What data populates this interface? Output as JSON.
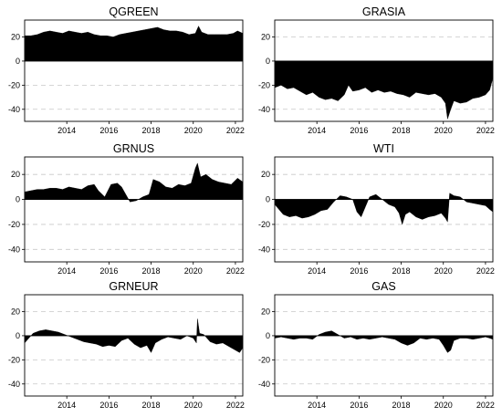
{
  "chart_data": [
    {
      "type": "area",
      "title": "QGREEN",
      "xlim": [
        2012.0,
        2022.35
      ],
      "ylim": [
        -50,
        34
      ],
      "xticks": [
        2014,
        2016,
        2018,
        2020,
        2022
      ],
      "yticks": [
        20,
        0,
        -20,
        -40
      ],
      "grid": "horizontal dashed",
      "series": [
        {
          "x": [
            2012.0,
            2012.3,
            2012.6,
            2012.9,
            2013.2,
            2013.5,
            2013.8,
            2014.1,
            2014.4,
            2014.7,
            2015.0,
            2015.3,
            2015.6,
            2015.9,
            2016.2,
            2016.5,
            2016.8,
            2017.1,
            2017.4,
            2017.7,
            2018.0,
            2018.3,
            2018.6,
            2018.9,
            2019.2,
            2019.5,
            2019.8,
            2020.1,
            2020.25,
            2020.4,
            2020.7,
            2021.0,
            2021.3,
            2021.6,
            2021.9,
            2022.1,
            2022.35
          ],
          "y": [
            21,
            21,
            22,
            24,
            25,
            24,
            23,
            25,
            24,
            23,
            24,
            22,
            21,
            21,
            20,
            22,
            23,
            24,
            25,
            26,
            27,
            28,
            26,
            25,
            25,
            24,
            22,
            23,
            29,
            24,
            22,
            22,
            22,
            22,
            23,
            25,
            23
          ]
        }
      ]
    },
    {
      "type": "area",
      "title": "GRASIA",
      "xlim": [
        2012.0,
        2022.35
      ],
      "ylim": [
        -50,
        34
      ],
      "xticks": [
        2014,
        2016,
        2018,
        2020,
        2022
      ],
      "yticks": [
        20,
        0,
        -20,
        -40
      ],
      "grid": "horizontal dashed",
      "series": [
        {
          "x": [
            2012.0,
            2012.3,
            2012.6,
            2012.9,
            2013.2,
            2013.5,
            2013.8,
            2014.1,
            2014.4,
            2014.7,
            2015.0,
            2015.3,
            2015.5,
            2015.7,
            2016.0,
            2016.3,
            2016.6,
            2016.9,
            2017.2,
            2017.5,
            2017.8,
            2018.1,
            2018.4,
            2018.7,
            2019.0,
            2019.3,
            2019.6,
            2019.9,
            2020.1,
            2020.2,
            2020.35,
            2020.5,
            2020.8,
            2021.1,
            2021.4,
            2021.7,
            2022.0,
            2022.2,
            2022.35
          ],
          "y": [
            -22,
            -20,
            -23,
            -22,
            -25,
            -28,
            -26,
            -30,
            -32,
            -31,
            -33,
            -28,
            -20,
            -25,
            -24,
            -22,
            -26,
            -24,
            -26,
            -25,
            -27,
            -28,
            -30,
            -26,
            -27,
            -28,
            -27,
            -30,
            -35,
            -48,
            -40,
            -33,
            -35,
            -34,
            -31,
            -30,
            -28,
            -24,
            -14
          ]
        }
      ]
    },
    {
      "type": "area",
      "title": "GRNUS",
      "xlim": [
        2012.0,
        2022.35
      ],
      "ylim": [
        -50,
        34
      ],
      "xticks": [
        2014,
        2016,
        2018,
        2020,
        2022
      ],
      "yticks": [
        20,
        0,
        -20,
        -40
      ],
      "grid": "horizontal dashed",
      "series": [
        {
          "x": [
            2012.0,
            2012.3,
            2012.6,
            2012.9,
            2013.2,
            2013.5,
            2013.8,
            2014.1,
            2014.4,
            2014.7,
            2015.0,
            2015.3,
            2015.5,
            2015.8,
            2016.1,
            2016.4,
            2016.6,
            2016.8,
            2017.0,
            2017.3,
            2017.6,
            2017.9,
            2018.1,
            2018.4,
            2018.7,
            2019.0,
            2019.3,
            2019.6,
            2019.9,
            2020.1,
            2020.2,
            2020.35,
            2020.6,
            2020.9,
            2021.2,
            2021.5,
            2021.8,
            2022.1,
            2022.35
          ],
          "y": [
            6,
            7,
            8,
            8,
            9,
            9,
            8,
            10,
            9,
            8,
            11,
            12,
            7,
            2,
            12,
            13,
            10,
            4,
            -2,
            -1,
            2,
            4,
            16,
            14,
            10,
            9,
            12,
            11,
            13,
            25,
            29,
            18,
            20,
            16,
            14,
            13,
            12,
            17,
            14
          ]
        }
      ]
    },
    {
      "type": "area",
      "title": "WTI",
      "xlim": [
        2012.0,
        2022.35
      ],
      "ylim": [
        -50,
        34
      ],
      "xticks": [
        2014,
        2016,
        2018,
        2020,
        2022
      ],
      "yticks": [
        20,
        0,
        -20,
        -40
      ],
      "grid": "horizontal dashed",
      "series": [
        {
          "x": [
            2012.0,
            2012.2,
            2012.4,
            2012.7,
            2013.0,
            2013.3,
            2013.6,
            2013.9,
            2014.2,
            2014.5,
            2014.8,
            2015.1,
            2015.4,
            2015.7,
            2015.9,
            2016.1,
            2016.3,
            2016.5,
            2016.8,
            2017.1,
            2017.4,
            2017.7,
            2017.9,
            2018.05,
            2018.2,
            2018.4,
            2018.7,
            2019.0,
            2019.3,
            2019.6,
            2019.9,
            2020.1,
            2020.2,
            2020.3,
            2020.5,
            2020.8,
            2021.1,
            2021.4,
            2021.7,
            2022.0,
            2022.2,
            2022.35
          ],
          "y": [
            -4,
            -8,
            -12,
            -14,
            -13,
            -15,
            -14,
            -12,
            -9,
            -8,
            -2,
            3,
            2,
            0,
            -10,
            -14,
            -6,
            2,
            4,
            0,
            -4,
            -6,
            -11,
            -20,
            -12,
            -10,
            -14,
            -16,
            -14,
            -13,
            -11,
            -15,
            -18,
            5,
            3,
            2,
            -2,
            -3,
            -4,
            -5,
            -8,
            -10
          ]
        }
      ]
    },
    {
      "type": "area",
      "title": "GRNEUR",
      "xlim": [
        2012.0,
        2022.35
      ],
      "ylim": [
        -50,
        34
      ],
      "xticks": [
        2014,
        2016,
        2018,
        2020,
        2022
      ],
      "yticks": [
        20,
        0,
        -20,
        -40
      ],
      "grid": "horizontal dashed",
      "series": [
        {
          "x": [
            2012.0,
            2012.2,
            2012.4,
            2012.7,
            2013.0,
            2013.3,
            2013.6,
            2013.9,
            2014.2,
            2014.5,
            2014.8,
            2015.1,
            2015.4,
            2015.7,
            2016.0,
            2016.3,
            2016.6,
            2016.9,
            2017.2,
            2017.5,
            2017.8,
            2018.0,
            2018.2,
            2018.5,
            2018.8,
            2019.1,
            2019.4,
            2019.7,
            2020.0,
            2020.15,
            2020.2,
            2020.3,
            2020.5,
            2020.8,
            2021.1,
            2021.4,
            2021.7,
            2022.0,
            2022.2,
            2022.35
          ],
          "y": [
            -6,
            -2,
            2,
            4,
            5,
            4,
            3,
            1,
            -1,
            -3,
            -5,
            -6,
            -7,
            -9,
            -8,
            -9,
            -4,
            -2,
            -7,
            -10,
            -8,
            -14,
            -6,
            -3,
            -1,
            -2,
            -3,
            0,
            -2,
            -6,
            14,
            2,
            1,
            -5,
            -7,
            -6,
            -9,
            -12,
            -14,
            -10
          ]
        }
      ]
    },
    {
      "type": "area",
      "title": "GAS",
      "xlim": [
        2012.0,
        2022.35
      ],
      "ylim": [
        -50,
        34
      ],
      "xticks": [
        2014,
        2016,
        2018,
        2020,
        2022
      ],
      "yticks": [
        20,
        0,
        -20,
        -40
      ],
      "grid": "horizontal dashed",
      "series": [
        {
          "x": [
            2012.0,
            2012.3,
            2012.6,
            2012.9,
            2013.2,
            2013.5,
            2013.8,
            2014.1,
            2014.4,
            2014.7,
            2015.0,
            2015.3,
            2015.6,
            2015.9,
            2016.2,
            2016.5,
            2016.8,
            2017.1,
            2017.4,
            2017.7,
            2018.0,
            2018.3,
            2018.6,
            2018.9,
            2019.2,
            2019.5,
            2019.8,
            2020.0,
            2020.2,
            2020.35,
            2020.5,
            2020.8,
            2021.1,
            2021.4,
            2021.7,
            2022.0,
            2022.2,
            2022.35
          ],
          "y": [
            -2,
            -1,
            -2,
            -3,
            -2,
            -2,
            -3,
            1,
            3,
            4,
            1,
            -2,
            -1,
            -3,
            -2,
            -3,
            -2,
            -1,
            -2,
            -3,
            -6,
            -8,
            -6,
            -2,
            -3,
            -2,
            -3,
            -8,
            -14,
            -12,
            -4,
            -2,
            -2,
            -3,
            -2,
            -1,
            -2,
            -3
          ]
        }
      ]
    }
  ]
}
